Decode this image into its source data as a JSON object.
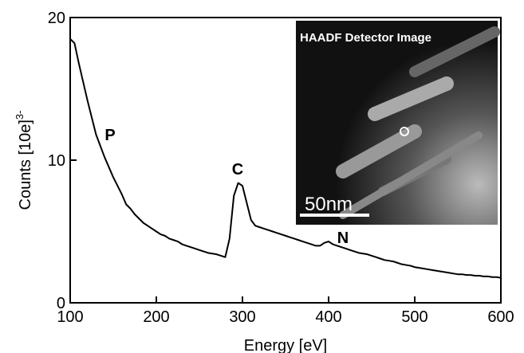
{
  "chart_data": {
    "type": "line",
    "xlabel": "Energy [eV]",
    "ylabel": "Counts [10e]",
    "ylabel_superscript": "3-",
    "annotations": [
      "P",
      "C",
      "N"
    ],
    "inset": {
      "title": "HAADF Detector Image",
      "scale_bar": "50nm"
    },
    "x": [
      100,
      105,
      110,
      115,
      120,
      125,
      130,
      135,
      140,
      145,
      150,
      155,
      160,
      165,
      170,
      175,
      180,
      185,
      190,
      195,
      200,
      205,
      210,
      215,
      220,
      225,
      230,
      235,
      240,
      245,
      250,
      255,
      260,
      265,
      270,
      275,
      280,
      285,
      290,
      295,
      300,
      305,
      310,
      315,
      320,
      325,
      330,
      335,
      340,
      345,
      350,
      355,
      360,
      365,
      370,
      375,
      380,
      385,
      390,
      395,
      400,
      405,
      410,
      415,
      420,
      425,
      430,
      435,
      440,
      445,
      450,
      455,
      460,
      465,
      470,
      475,
      480,
      485,
      490,
      495,
      500,
      505,
      510,
      515,
      520,
      525,
      530,
      535,
      540,
      545,
      550,
      555,
      560,
      565,
      570,
      575,
      580,
      585,
      590,
      595,
      600
    ],
    "series": [
      {
        "color": "#000000",
        "values": [
          18.5,
          18.2,
          16.8,
          15.5,
          14.2,
          13.0,
          11.8,
          11.0,
          10.2,
          9.5,
          8.8,
          8.2,
          7.6,
          6.9,
          6.6,
          6.2,
          5.9,
          5.6,
          5.4,
          5.2,
          5.0,
          4.8,
          4.7,
          4.5,
          4.4,
          4.3,
          4.1,
          4.0,
          3.9,
          3.8,
          3.7,
          3.6,
          3.5,
          3.45,
          3.4,
          3.3,
          3.2,
          4.5,
          7.5,
          8.4,
          8.2,
          7.0,
          5.8,
          5.4,
          5.3,
          5.2,
          5.1,
          5.0,
          4.9,
          4.8,
          4.7,
          4.6,
          4.5,
          4.4,
          4.3,
          4.2,
          4.1,
          4.0,
          4.0,
          4.2,
          4.3,
          4.1,
          4.0,
          3.9,
          3.8,
          3.7,
          3.6,
          3.5,
          3.45,
          3.4,
          3.3,
          3.2,
          3.1,
          3.0,
          2.95,
          2.9,
          2.8,
          2.7,
          2.65,
          2.6,
          2.5,
          2.45,
          2.4,
          2.35,
          2.3,
          2.25,
          2.2,
          2.15,
          2.1,
          2.05,
          2.0,
          2.0,
          1.95,
          1.95,
          1.9,
          1.9,
          1.85,
          1.85,
          1.8,
          1.8,
          1.75
        ]
      }
    ],
    "xlim": [
      100,
      600
    ],
    "ylim": [
      0,
      20
    ],
    "xticks": [
      100,
      200,
      300,
      400,
      500,
      600
    ],
    "yticks": [
      0,
      10,
      20
    ]
  }
}
